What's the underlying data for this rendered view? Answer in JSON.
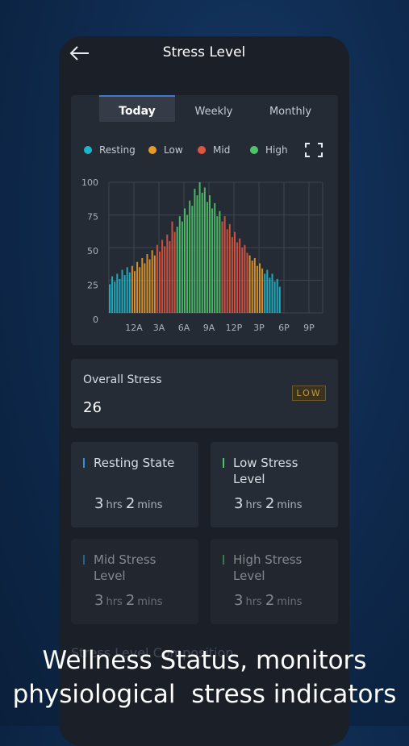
{
  "header": {
    "title": "Stress Level"
  },
  "tabs": [
    "Today",
    "Weekly",
    "Monthly"
  ],
  "chart_data": {
    "type": "bar",
    "categories": [
      null,
      null,
      null,
      null,
      null,
      null,
      null,
      null,
      null,
      null,
      "12A",
      null,
      null,
      null,
      null,
      null,
      null,
      null,
      null,
      null,
      "3A",
      null,
      null,
      null,
      null,
      null,
      null,
      null,
      null,
      null,
      "6A",
      null,
      null,
      null,
      null,
      null,
      null,
      null,
      null,
      null,
      "9A",
      null,
      null,
      null,
      null,
      null,
      null,
      null,
      null,
      null,
      "12P",
      null,
      null,
      null,
      null,
      null,
      null,
      null,
      null,
      null,
      "3P",
      null,
      null,
      null,
      null,
      null,
      null,
      null,
      null,
      null,
      "6P",
      null,
      null,
      null,
      null,
      null,
      null,
      null,
      null,
      null,
      "9P"
    ],
    "series": [
      {
        "name": "Resting",
        "color": "#1fb5c9",
        "values": [
          22,
          28,
          24,
          30,
          26,
          33,
          29,
          35,
          31,
          null,
          null,
          null,
          null,
          null,
          null,
          null,
          null,
          null,
          null,
          null,
          null,
          null,
          null,
          null,
          null,
          null,
          null,
          null,
          null,
          null,
          null,
          null,
          null,
          null,
          null,
          null,
          null,
          null,
          null,
          null,
          null,
          null,
          null,
          null,
          null,
          null,
          null,
          null,
          null,
          null,
          null,
          null,
          null,
          null,
          null,
          null,
          null,
          null,
          null,
          null,
          null,
          null,
          30,
          33,
          27,
          30,
          24,
          26,
          20,
          null,
          null,
          null,
          null,
          null,
          null,
          null,
          null,
          null,
          null,
          null,
          null
        ]
      },
      {
        "name": "Low",
        "color": "#e59a2a",
        "values": [
          null,
          null,
          null,
          null,
          null,
          null,
          null,
          null,
          null,
          36,
          32,
          39,
          35,
          42,
          38,
          45,
          41,
          48,
          44,
          null,
          null,
          null,
          null,
          null,
          null,
          null,
          null,
          null,
          null,
          null,
          null,
          null,
          null,
          null,
          null,
          null,
          null,
          null,
          null,
          null,
          null,
          null,
          null,
          null,
          null,
          null,
          null,
          null,
          null,
          null,
          null,
          null,
          null,
          null,
          null,
          null,
          44,
          40,
          42,
          36,
          38,
          34,
          null,
          null,
          null,
          null,
          null,
          null,
          null,
          null,
          null,
          null,
          null,
          null,
          null,
          null,
          null,
          null,
          null,
          null,
          null
        ]
      },
      {
        "name": "Mid",
        "color": "#e0553f",
        "values": [
          null,
          null,
          null,
          null,
          null,
          null,
          null,
          null,
          null,
          null,
          null,
          null,
          null,
          null,
          null,
          null,
          null,
          null,
          null,
          52,
          47,
          56,
          51,
          60,
          55,
          70,
          62,
          null,
          null,
          null,
          null,
          null,
          null,
          null,
          null,
          null,
          null,
          null,
          null,
          null,
          null,
          null,
          null,
          null,
          null,
          70,
          74,
          64,
          68,
          58,
          62,
          54,
          57,
          50,
          52,
          46,
          null,
          null,
          null,
          null,
          null,
          null,
          null,
          null,
          null,
          null,
          null,
          null,
          null,
          null,
          null,
          null,
          null,
          null,
          null,
          null,
          null,
          null,
          null,
          null,
          null
        ]
      },
      {
        "name": "High",
        "color": "#4ec46a",
        "values": [
          null,
          null,
          null,
          null,
          null,
          null,
          null,
          null,
          null,
          null,
          null,
          null,
          null,
          null,
          null,
          null,
          null,
          null,
          null,
          null,
          null,
          null,
          null,
          null,
          null,
          null,
          null,
          66,
          74,
          70,
          80,
          75,
          86,
          82,
          95,
          90,
          100,
          92,
          96,
          85,
          90,
          80,
          84,
          74,
          78,
          null,
          null,
          null,
          null,
          null,
          null,
          null,
          null,
          null,
          null,
          null,
          null,
          null,
          null,
          null,
          null,
          null,
          null,
          null,
          null,
          null,
          null,
          null,
          null,
          null,
          null,
          null,
          null,
          null,
          null,
          null,
          null,
          null,
          null,
          null,
          null
        ]
      }
    ],
    "ylim": [
      0,
      100
    ],
    "yticks": [
      0,
      25,
      50,
      75,
      100
    ],
    "grid": true
  },
  "overall": {
    "label": "Overall Stress",
    "value": 26,
    "badge": "LOW"
  },
  "cards": [
    {
      "title": "Resting State",
      "hours": 3,
      "hours_unit": "hrs",
      "minutes": 2,
      "minutes_unit": "mins"
    },
    {
      "title": "Low Stress Level",
      "hours": 3,
      "hours_unit": "hrs",
      "minutes": 2,
      "minutes_unit": "mins"
    },
    {
      "title": "Mid Stress Level",
      "hours": 3,
      "hours_unit": "hrs",
      "minutes": 2,
      "minutes_unit": "mins"
    },
    {
      "title": "High Stress Level",
      "hours": 3,
      "hours_unit": "hrs",
      "minutes": 2,
      "minutes_unit": "mins"
    }
  ],
  "section_title": "Stress Level Composition",
  "caption": [
    "Wellness Status, monitors",
    "physiological  stress indicators"
  ]
}
